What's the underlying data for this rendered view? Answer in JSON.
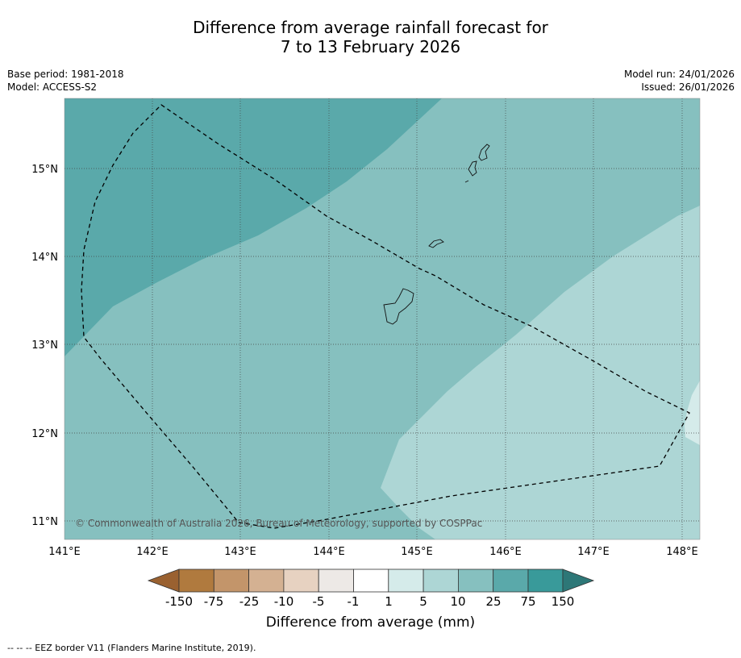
{
  "title": {
    "line1": "Difference from average rainfall forecast for",
    "line2": "7 to 13 February 2026"
  },
  "meta": {
    "base_period": "Base period: 1981-2018",
    "model": "Model: ACCESS-S2",
    "model_run": "Model run: 24/01/2026",
    "issued": "Issued: 26/01/2026"
  },
  "map": {
    "lon_labels": [
      "141°E",
      "142°E",
      "143°E",
      "144°E",
      "145°E",
      "146°E",
      "147°E",
      "148°E"
    ],
    "lat_labels": [
      "15°N",
      "14°N",
      "13°N",
      "12°N",
      "11°N"
    ],
    "copyright": "© Commonwealth of Australia 2026, Bureau of Meteorology, supported by COSPPac",
    "colors": {
      "band_75_150": "#5aa9aa",
      "band_25_75": "#86c0bf",
      "band_10_25": "#add6d5",
      "band_5_10": "#d5ebea"
    }
  },
  "colorbar": {
    "labels": [
      "-150",
      "-75",
      "-25",
      "-10",
      "-5",
      "-1",
      "1",
      "5",
      "10",
      "25",
      "75",
      "150"
    ],
    "colors": [
      "#9a6130",
      "#b07a3e",
      "#c3956a",
      "#d4b192",
      "#e7d2c1",
      "#ede9e6",
      "#ffffff",
      "#d5ebea",
      "#add6d5",
      "#86c0bf",
      "#5aa9aa",
      "#399a9a",
      "#2d7777"
    ],
    "title": "Difference from average (mm)"
  },
  "footer": {
    "note": "--  --  -- EEZ border V11 (Flanders Marine Institute, 2019)."
  }
}
